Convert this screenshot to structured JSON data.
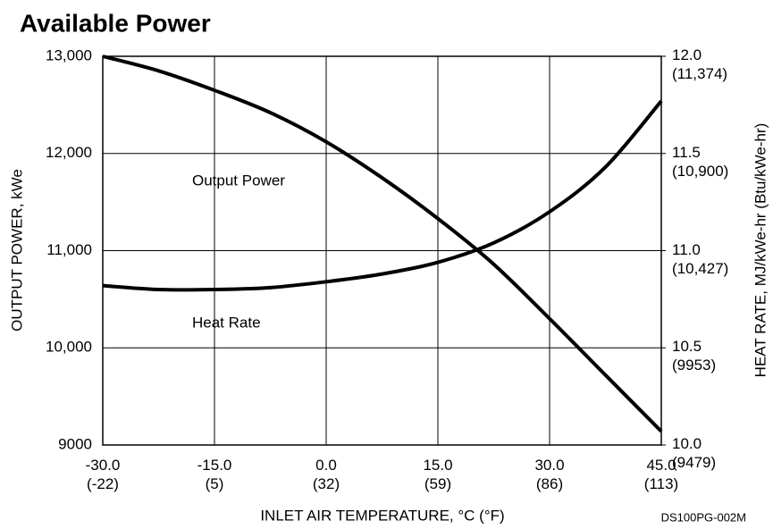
{
  "chart_data": {
    "type": "line",
    "title": "Available Power",
    "x_label": "INLET AIR TEMPERATURE, °C (°F)",
    "y_label": "OUTPUT POWER, kWe",
    "y2_label": "HEAT RATE, MJ/kWe-hr (Btu/kWe-hr)",
    "annotations": [
      "Output Power",
      "Heat Rate"
    ],
    "footnote": "DS100PG-002M",
    "x": [
      -30,
      -22.5,
      -15,
      -7.5,
      0,
      7.5,
      15,
      22.5,
      30,
      37.5,
      45
    ],
    "series": [
      {
        "name": "Output Power",
        "color": "#000000",
        "values": [
          13000,
          12850,
          12650,
          12420,
          12120,
          11750,
          11330,
          10860,
          10300,
          9720,
          9140
        ]
      },
      {
        "name": "Heat Rate",
        "color": "#000000",
        "axis": "y2",
        "values": [
          10.82,
          10.8,
          10.8,
          10.81,
          10.84,
          10.88,
          10.94,
          11.04,
          11.2,
          11.43,
          11.77
        ]
      }
    ],
    "xlim": [
      -30,
      45
    ],
    "xticks": [
      {
        "value": -30,
        "label": "-30.0\n(-22)"
      },
      {
        "value": -15,
        "label": "-15.0\n(5)"
      },
      {
        "value": 0,
        "label": "0.0\n(32)"
      },
      {
        "value": 15,
        "label": "15.0\n(59)"
      },
      {
        "value": 30,
        "label": "30.0\n(86)"
      },
      {
        "value": 45,
        "label": "45.0\n(113)"
      }
    ],
    "ylim": [
      9000,
      13000
    ],
    "yticks": [
      9000,
      {
        "value": 10000,
        "label": "10,000"
      },
      {
        "value": 11000,
        "label": "11,000"
      },
      {
        "value": 12000,
        "label": "12,000"
      },
      {
        "value": 13000,
        "label": "13,000"
      }
    ],
    "y2lim": [
      10,
      12
    ],
    "y2ticks": [
      {
        "value": 10,
        "label": "10.0\n(9479)"
      },
      {
        "value": 10.5,
        "label": "10.5\n(9953)"
      },
      {
        "value": 11,
        "label": "11.0\n(10,427)"
      },
      {
        "value": 11.5,
        "label": "11.5\n(10,900)"
      },
      {
        "value": 12,
        "label": "12.0\n(11,374)"
      }
    ],
    "grid": true
  }
}
